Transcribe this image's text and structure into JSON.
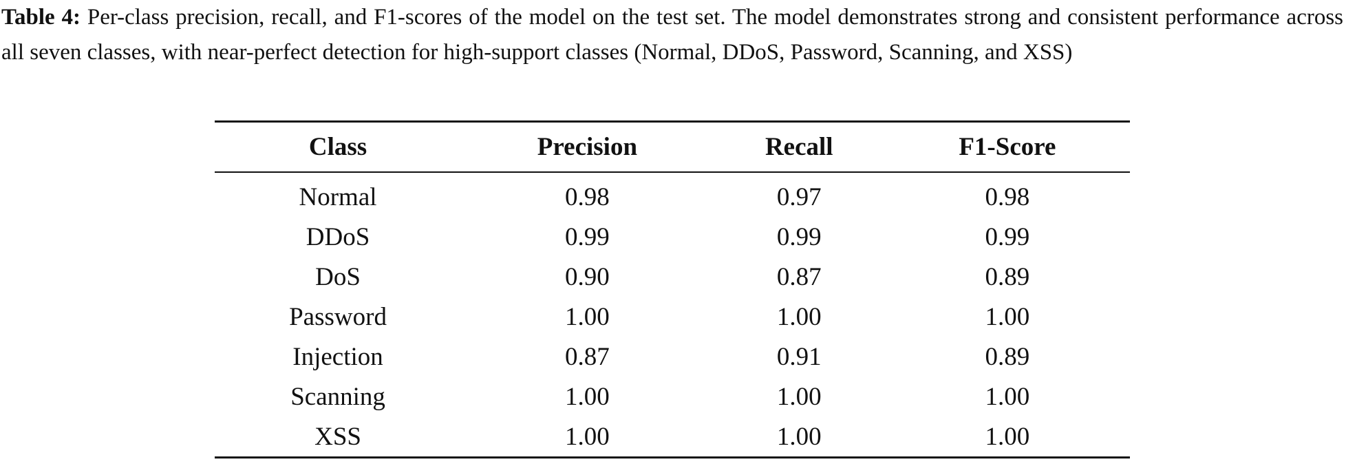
{
  "caption": {
    "label": "Table 4:",
    "text": "Per-class precision, recall, and F1-scores of the model on the test set. The model demonstrates strong and consistent performance across all seven classes, with near-perfect detection for high-support classes (Normal, DDoS, Password, Scanning, and XSS)"
  },
  "table": {
    "columns": [
      "Class",
      "Precision",
      "Recall",
      "F1-Score"
    ],
    "rows": [
      [
        "Normal",
        "0.98",
        "0.97",
        "0.98"
      ],
      [
        "DDoS",
        "0.99",
        "0.99",
        "0.99"
      ],
      [
        "DoS",
        "0.90",
        "0.87",
        "0.89"
      ],
      [
        "Password",
        "1.00",
        "1.00",
        "1.00"
      ],
      [
        "Injection",
        "0.87",
        "0.91",
        "0.89"
      ],
      [
        "Scanning",
        "1.00",
        "1.00",
        "1.00"
      ],
      [
        "XSS",
        "1.00",
        "1.00",
        "1.00"
      ]
    ]
  }
}
